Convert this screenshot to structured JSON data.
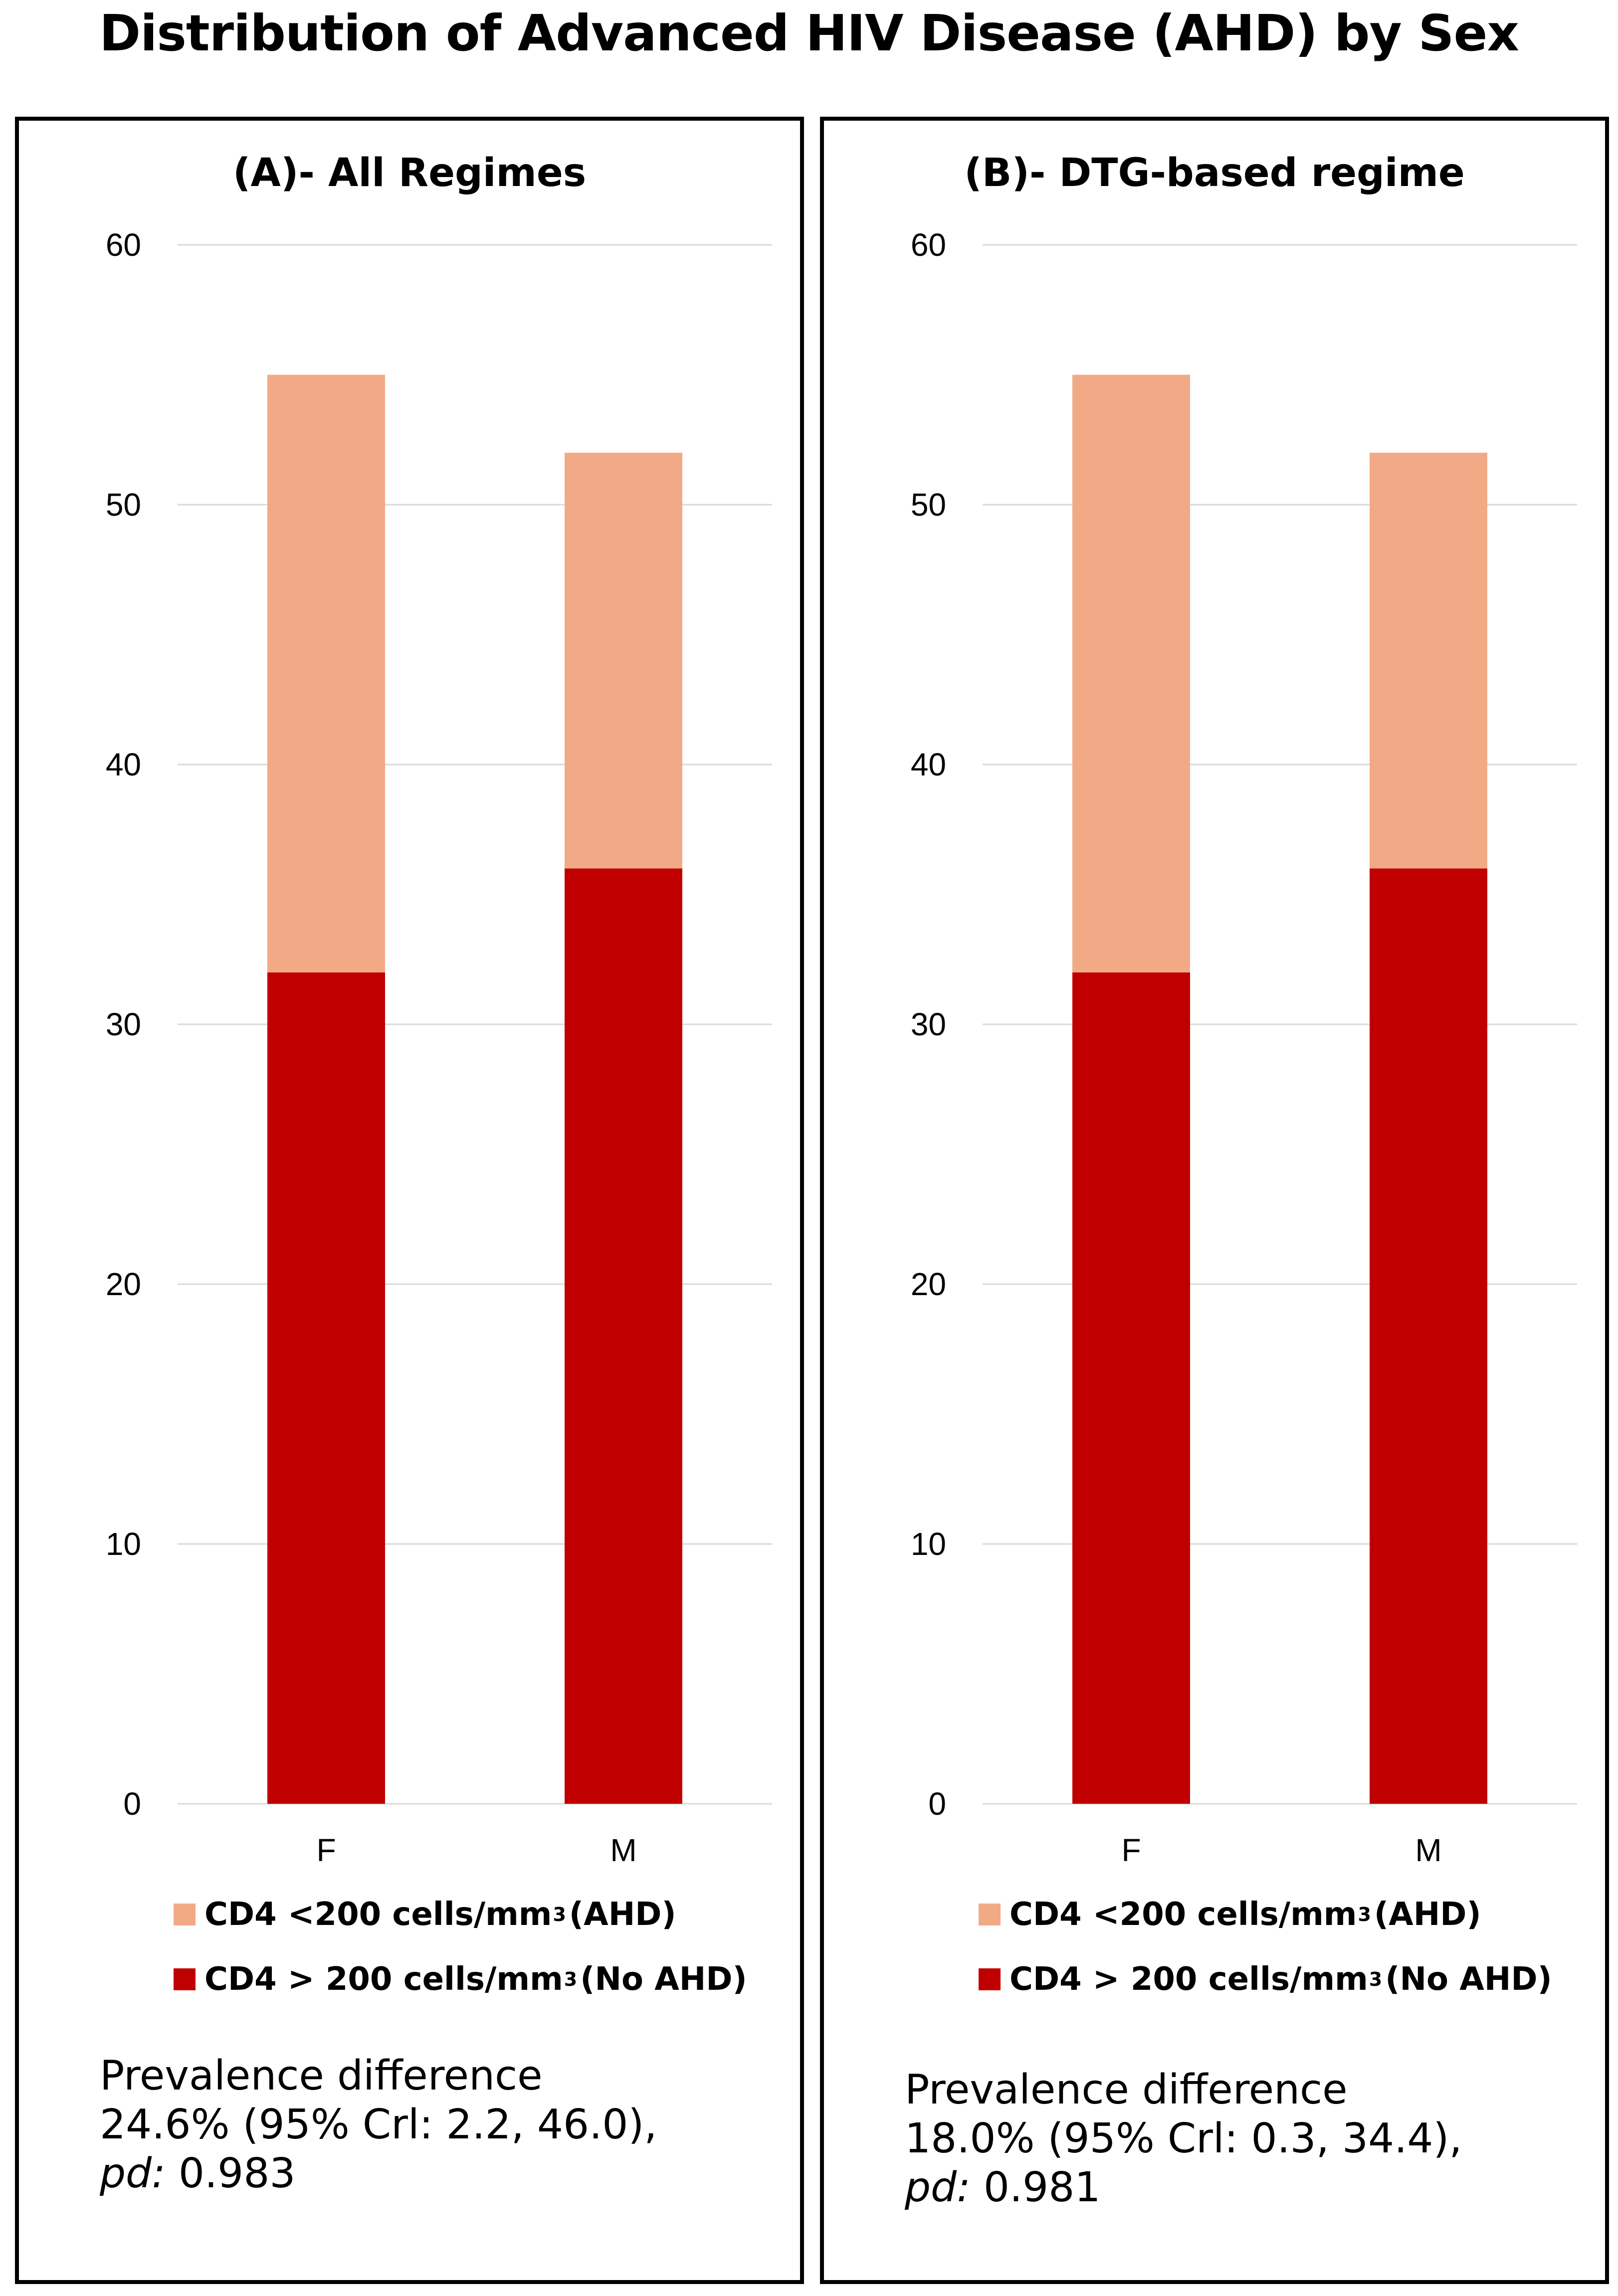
{
  "title": "Distribution of Advanced HIV Disease (AHD) by Sex",
  "colors": {
    "ahd": "#F2AA86",
    "no_ahd": "#C00000",
    "grid": "#D9D9D9"
  },
  "chart_data": [
    {
      "type": "bar",
      "stacked": true,
      "title": "(A)- All Regimes",
      "categories": [
        "F",
        "M"
      ],
      "series": [
        {
          "name": "CD4 > 200 cells/mm3 (No AHD)",
          "legend_label": "CD4 > 200 cells/mm",
          "legend_sup": "3",
          "legend_suffix": "(No AHD)",
          "color": "#C00000",
          "values": [
            32,
            36
          ]
        },
        {
          "name": "CD4 <200 cells/mm3 (AHD)",
          "legend_label": "CD4 <200 cells/mm",
          "legend_sup": "3",
          "legend_suffix": "(AHD)",
          "color": "#F2AA86",
          "values": [
            23,
            16
          ]
        }
      ],
      "ylim": [
        0,
        60
      ],
      "yticks": [
        0,
        10,
        20,
        30,
        40,
        50,
        60
      ],
      "grid": true,
      "legend_placement": "bottom",
      "annotation": {
        "line1": "Prevalence difference",
        "line2": "24.6% (95% Crl: 2.2, 46.0),",
        "pd_label": "pd:",
        "pd_value": "0.983"
      }
    },
    {
      "type": "bar",
      "stacked": true,
      "title": "(B)- DTG-based regime",
      "categories": [
        "F",
        "M"
      ],
      "series": [
        {
          "name": "CD4 > 200 cells/mm3 (No AHD)",
          "legend_label": "CD4 > 200 cells/mm",
          "legend_sup": "3",
          "legend_suffix": "(No AHD)",
          "color": "#C00000",
          "values": [
            32,
            36
          ]
        },
        {
          "name": "CD4 <200 cells/mm3 (AHD)",
          "legend_label": "CD4 <200 cells/mm",
          "legend_sup": "3",
          "legend_suffix": "(AHD)",
          "color": "#F2AA86",
          "values": [
            23,
            16
          ]
        }
      ],
      "ylim": [
        0,
        60
      ],
      "yticks": [
        0,
        10,
        20,
        30,
        40,
        50,
        60
      ],
      "grid": true,
      "legend_placement": "bottom",
      "annotation": {
        "line1": "Prevalence difference",
        "line2": "18.0% (95% Crl: 0.3, 34.4),",
        "pd_label": "pd:",
        "pd_value": "0.981"
      }
    }
  ]
}
